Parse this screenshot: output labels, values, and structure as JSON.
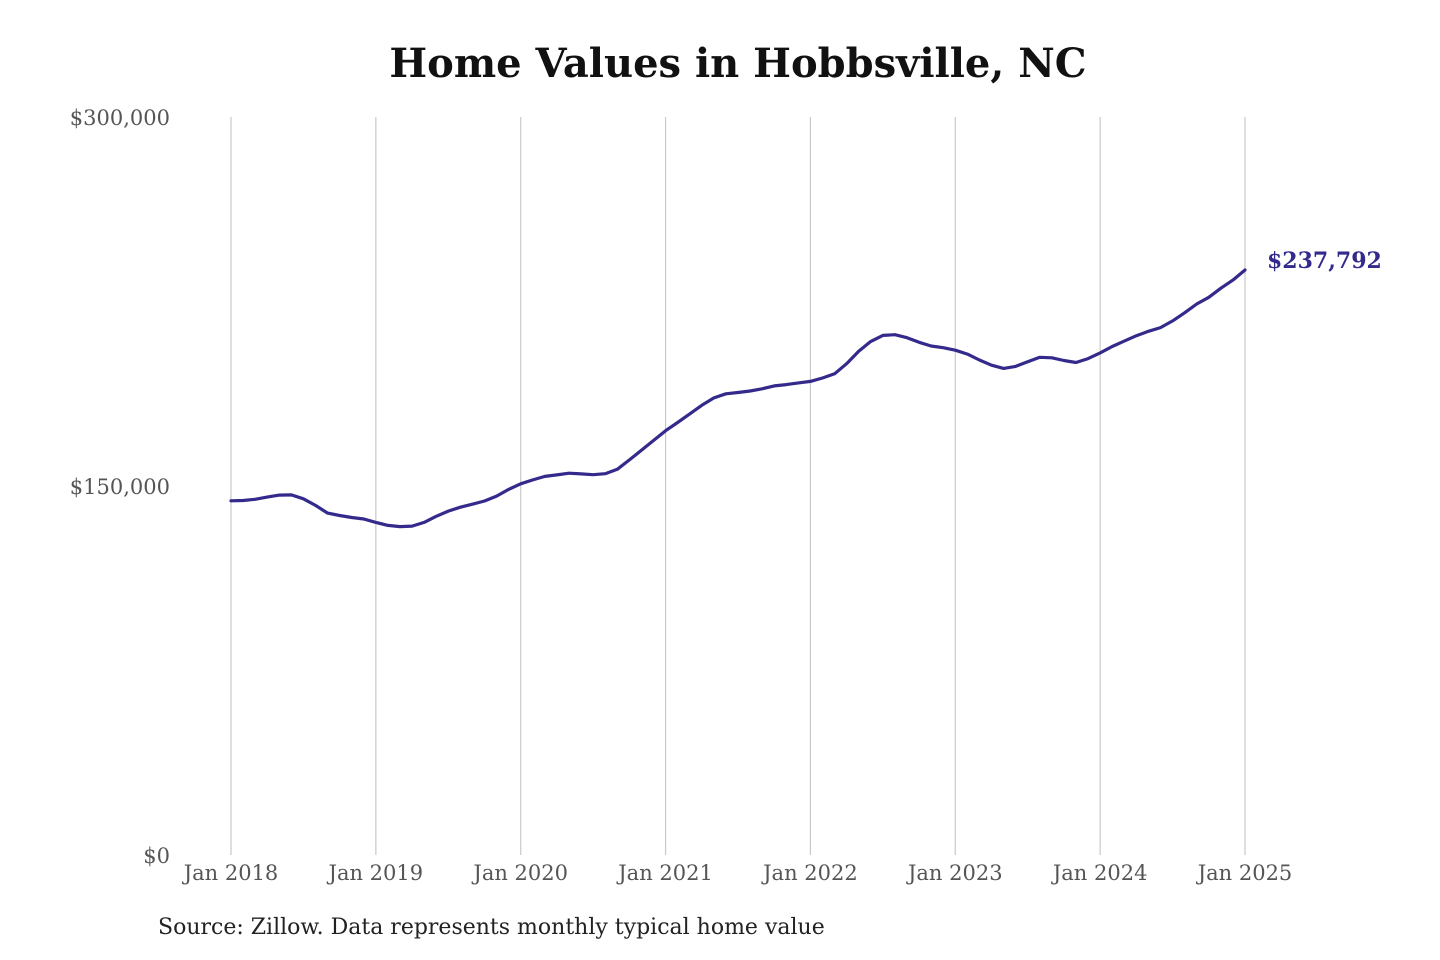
{
  "chart_data": {
    "type": "line",
    "title": "Home Values in Hobbsville, NC",
    "xlabel": "",
    "ylabel": "",
    "y_ticks": [
      {
        "value": 300000,
        "label": "$300,000"
      },
      {
        "value": 150000,
        "label": "$150,000"
      },
      {
        "value": 0,
        "label": "$0"
      }
    ],
    "x_ticks": [
      {
        "value": "2018-01",
        "label": "Jan 2018"
      },
      {
        "value": "2019-01",
        "label": "Jan 2019"
      },
      {
        "value": "2020-01",
        "label": "Jan 2020"
      },
      {
        "value": "2021-01",
        "label": "Jan 2021"
      },
      {
        "value": "2022-01",
        "label": "Jan 2022"
      },
      {
        "value": "2023-01",
        "label": "Jan 2023"
      },
      {
        "value": "2024-01",
        "label": "Jan 2024"
      },
      {
        "value": "2025-01",
        "label": "Jan 2025"
      }
    ],
    "ylim": [
      0,
      300000
    ],
    "xlim": [
      "2018-01",
      "2025-01"
    ],
    "grid": "vertical",
    "legend": "none",
    "line_color": "#332a8c",
    "end_label": "$237,792",
    "series": [
      {
        "x": [
          "2018-01",
          "2018-02",
          "2018-03",
          "2018-04",
          "2018-05",
          "2018-06",
          "2018-07",
          "2018-08",
          "2018-09",
          "2018-10",
          "2018-11",
          "2018-12",
          "2019-01",
          "2019-02",
          "2019-03",
          "2019-04",
          "2019-05",
          "2019-06",
          "2019-07",
          "2019-08",
          "2019-09",
          "2019-10",
          "2019-11",
          "2019-12",
          "2020-01",
          "2020-02",
          "2020-03",
          "2020-04",
          "2020-05",
          "2020-06",
          "2020-07",
          "2020-08",
          "2020-09",
          "2020-10",
          "2020-11",
          "2020-12",
          "2021-01",
          "2021-02",
          "2021-03",
          "2021-04",
          "2021-05",
          "2021-06",
          "2021-07",
          "2021-08",
          "2021-09",
          "2021-10",
          "2021-11",
          "2021-12",
          "2022-01",
          "2022-02",
          "2022-03",
          "2022-04",
          "2022-05",
          "2022-06",
          "2022-07",
          "2022-08",
          "2022-09",
          "2022-10",
          "2022-11",
          "2022-12",
          "2023-01",
          "2023-02",
          "2023-03",
          "2023-04",
          "2023-05",
          "2023-06",
          "2023-07",
          "2023-08",
          "2023-09",
          "2023-10",
          "2023-11",
          "2023-12",
          "2024-01",
          "2024-02",
          "2024-03",
          "2024-04",
          "2024-05",
          "2024-06",
          "2024-07",
          "2024-08",
          "2024-09",
          "2024-10",
          "2024-11",
          "2024-12",
          "2025-01"
        ],
        "values": [
          144000,
          144100,
          144600,
          145500,
          146300,
          146400,
          144800,
          142100,
          139000,
          138000,
          137200,
          136600,
          135200,
          134000,
          133500,
          133700,
          135200,
          137700,
          139800,
          141400,
          142600,
          143900,
          145900,
          148600,
          150900,
          152500,
          153900,
          154500,
          155200,
          154900,
          154600,
          155000,
          156800,
          160600,
          164500,
          168500,
          172500,
          175800,
          179300,
          182800,
          185800,
          187500,
          188000,
          188600,
          189500,
          190700,
          191200,
          191900,
          192500,
          193900,
          195600,
          199700,
          204800,
          208800,
          211200,
          211500,
          210300,
          208400,
          206900,
          206200,
          205200,
          203600,
          201200,
          199100,
          197800,
          198600,
          200500,
          202300,
          202100,
          201000,
          200200,
          201800,
          204100,
          206700,
          208900,
          211100,
          212900,
          214400,
          217100,
          220400,
          224000,
          226700,
          230400,
          233700,
          237792
        ]
      }
    ]
  },
  "source_note": "Source: Zillow. Data represents monthly typical home value"
}
